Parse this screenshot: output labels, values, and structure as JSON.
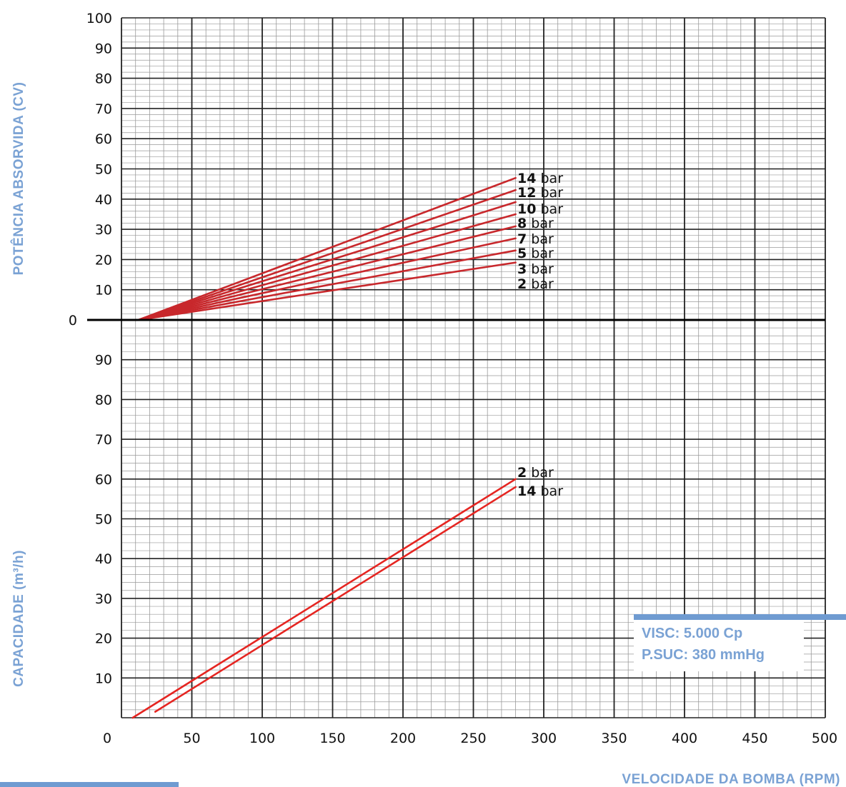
{
  "colors": {
    "curve": "#e52521",
    "curve_dark": "#c8282c",
    "axis_title": "#7aa2d4",
    "grid_major": "#222222",
    "grid_minor": "#9a9a9a",
    "accent_bar": "#6f9bd1"
  },
  "note": {
    "visc": "VISC: 5.000 Cp",
    "psuc": "P.SUC: 380 mmHg"
  },
  "chart_data": [
    {
      "type": "line",
      "panel": "top",
      "ylabel": "POTÊNCIA ABSORVIDA (CV)",
      "xlim": [
        0,
        500
      ],
      "ylim": [
        0,
        100
      ],
      "y_ticks": [
        "0",
        "10",
        "20",
        "30",
        "40",
        "50",
        "60",
        "70",
        "80",
        "90",
        "100"
      ],
      "grid": true,
      "series": [
        {
          "name": "14 bar",
          "label_num": "14",
          "label_unit": " bar",
          "x": [
            12,
            280
          ],
          "y": [
            0,
            47
          ]
        },
        {
          "name": "12 bar",
          "label_num": "12",
          "label_unit": " bar",
          "x": [
            12,
            280
          ],
          "y": [
            0,
            43
          ]
        },
        {
          "name": "10 bar",
          "label_num": "10",
          "label_unit": " bar",
          "x": [
            12,
            280
          ],
          "y": [
            0,
            39
          ]
        },
        {
          "name": "8 bar",
          "label_num": "8",
          "label_unit": " bar",
          "x": [
            12,
            280
          ],
          "y": [
            0,
            35
          ]
        },
        {
          "name": "7 bar",
          "label_num": "7",
          "label_unit": " bar",
          "x": [
            12,
            280
          ],
          "y": [
            0,
            31
          ]
        },
        {
          "name": "5 bar",
          "label_num": "5",
          "label_unit": " bar",
          "x": [
            12,
            280
          ],
          "y": [
            0,
            27
          ]
        },
        {
          "name": "3 bar",
          "label_num": "3",
          "label_unit": " bar",
          "x": [
            12,
            280
          ],
          "y": [
            0,
            23
          ]
        },
        {
          "name": "2 bar",
          "label_num": "2",
          "label_unit": " bar",
          "x": [
            12,
            280
          ],
          "y": [
            0,
            19
          ]
        }
      ]
    },
    {
      "type": "line",
      "panel": "bottom",
      "xlabel": "VELOCIDADE DA BOMBA (RPM)",
      "ylabel": "CAPACIDADE (m³/h)",
      "xlim": [
        0,
        500
      ],
      "ylim": [
        0,
        100
      ],
      "x_ticks": [
        "0",
        "50",
        "100",
        "150",
        "200",
        "250",
        "300",
        "350",
        "400",
        "450",
        "500"
      ],
      "y_ticks": [
        "10",
        "20",
        "30",
        "40",
        "50",
        "60",
        "70",
        "80",
        "90"
      ],
      "grid": true,
      "series": [
        {
          "name": "2 bar",
          "label_num": "2",
          "label_unit": " bar",
          "x": [
            8,
            280
          ],
          "y": [
            0,
            60
          ]
        },
        {
          "name": "14 bar",
          "label_num": "14",
          "label_unit": " bar",
          "x": [
            24,
            280
          ],
          "y": [
            1.5,
            58
          ]
        }
      ]
    }
  ]
}
